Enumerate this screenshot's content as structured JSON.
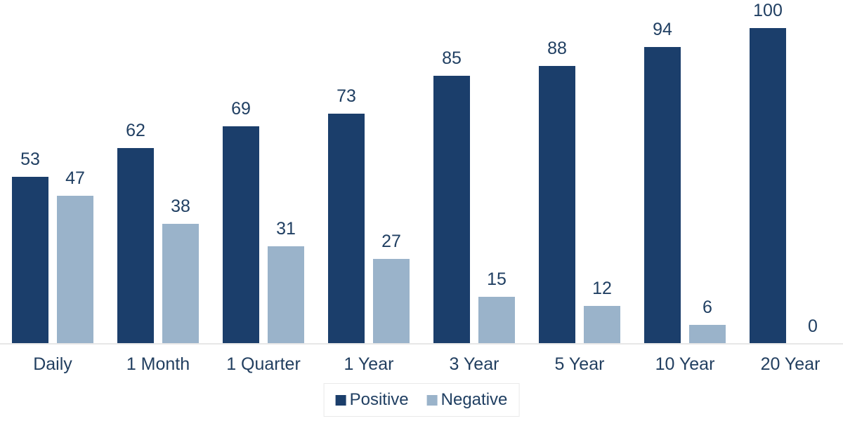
{
  "chart_data": {
    "type": "bar",
    "title": "",
    "xlabel": "",
    "ylabel": "",
    "categories": [
      "Daily",
      "1 Month",
      "1 Quarter",
      "1 Year",
      "3 Year",
      "5 Year",
      "10 Year",
      "20 Year"
    ],
    "series": [
      {
        "name": "Positive",
        "color": "#1b3e6b",
        "values": [
          53,
          62,
          69,
          73,
          85,
          88,
          94,
          100
        ]
      },
      {
        "name": "Negative",
        "color": "#9ab3ca",
        "values": [
          47,
          38,
          31,
          27,
          15,
          12,
          6,
          0
        ]
      }
    ],
    "ylim": [
      0,
      100
    ],
    "value_labels": true,
    "grid": false,
    "legend_position": "bottom-center",
    "colors": {
      "background": "#ffffff",
      "axis_line": "#e7e7e7",
      "label_text": "#203f62"
    }
  }
}
